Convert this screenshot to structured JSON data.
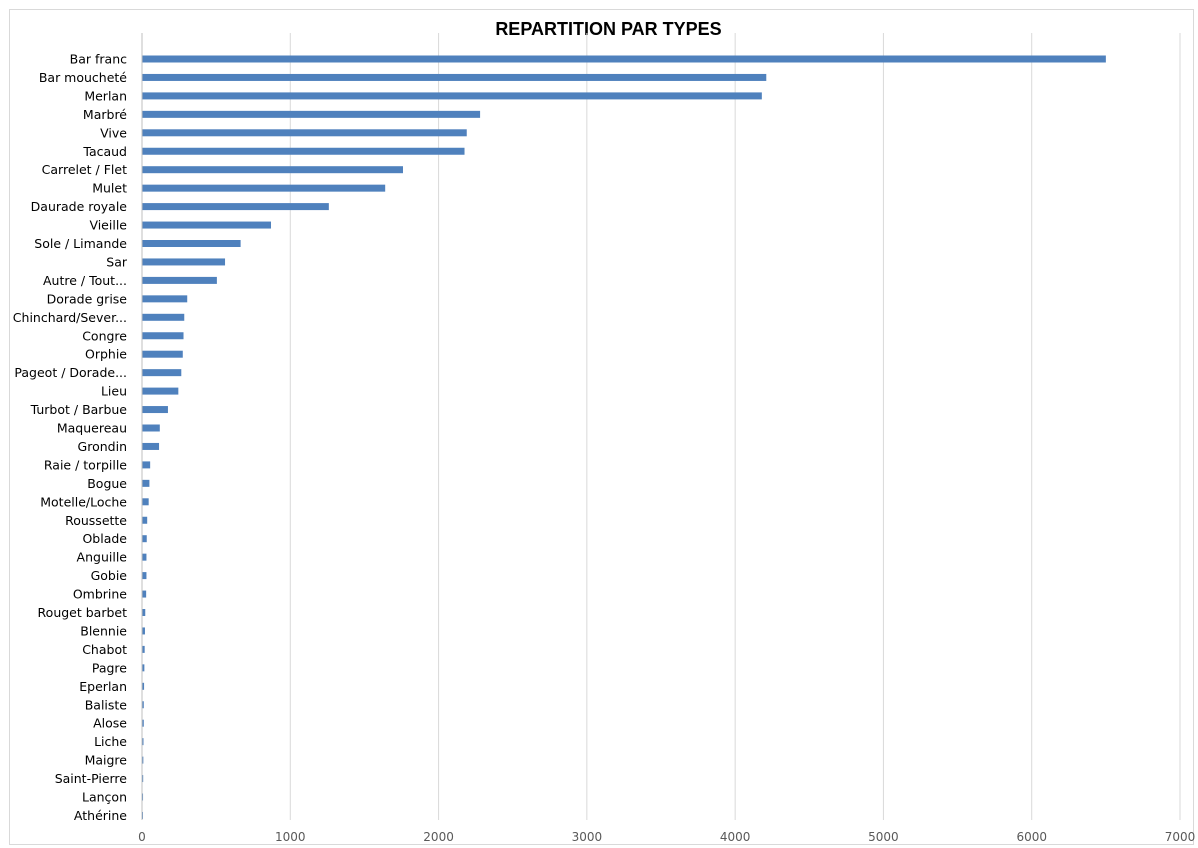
{
  "chart_data": {
    "type": "bar",
    "orientation": "horizontal",
    "title": "REPARTITION PAR TYPES",
    "xlabel": "",
    "ylabel": "",
    "xlim": [
      0,
      7000
    ],
    "x_ticks": [
      "0",
      "1000",
      "2000",
      "3000",
      "4000",
      "5000",
      "6000",
      "7000"
    ],
    "grid": "vertical",
    "legend": "none",
    "bar_color": "#4f81bd",
    "categories": [
      "Bar franc",
      "Bar moucheté",
      "Merlan",
      "Marbré",
      "Vive",
      "Tacaud",
      "Carrelet / Flet",
      "Mulet",
      "Daurade royale",
      "Vieille",
      "Sole / Limande",
      "Sar",
      "Autre / Tout...",
      "Dorade grise",
      "Chinchard/Sever...",
      "Congre",
      "Orphie",
      "Pageot / Dorade...",
      "Lieu",
      "Turbot / Barbue",
      "Maquereau",
      "Grondin",
      "Raie / torpille",
      "Bogue",
      "Motelle/Loche",
      "Roussette",
      "Oblade",
      "Anguille",
      "Gobie",
      "Ombrine",
      "Rouget barbet",
      "Blennie",
      "Chabot",
      "Pagre",
      "Eperlan",
      "Baliste",
      "Alose",
      "Liche",
      "Maigre",
      "Saint-Pierre",
      "Lançon",
      "Athérine"
    ],
    "values": [
      6500,
      4210,
      4180,
      2280,
      2190,
      2175,
      1760,
      1640,
      1260,
      870,
      665,
      560,
      505,
      305,
      285,
      280,
      275,
      265,
      245,
      175,
      120,
      115,
      55,
      50,
      45,
      35,
      32,
      30,
      30,
      28,
      22,
      20,
      18,
      16,
      14,
      12,
      12,
      10,
      9,
      8,
      7,
      6
    ]
  }
}
